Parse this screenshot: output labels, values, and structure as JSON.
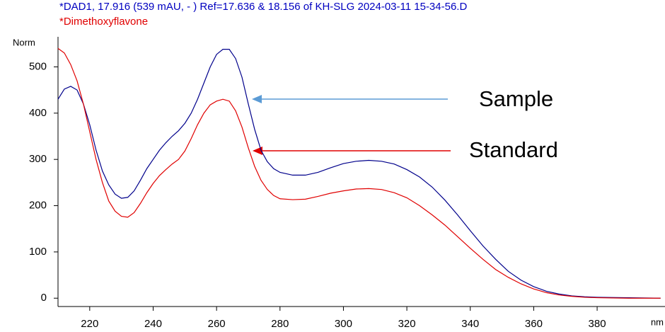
{
  "chart_data": {
    "type": "line",
    "title": "*DAD1, 17.916 (539 mAU, - ) Ref=17.636 & 18.156 of KH-SLG 2024-03-11 15-34-56.D",
    "subtitle": "*Dimethoxyflavone",
    "y_label": "Norm",
    "x_label": "nm",
    "x": [
      210,
      212,
      214,
      216,
      218,
      220,
      222,
      224,
      226,
      228,
      230,
      232,
      234,
      236,
      238,
      240,
      242,
      244,
      246,
      248,
      250,
      252,
      254,
      256,
      258,
      260,
      262,
      264,
      266,
      268,
      270,
      272,
      274,
      276,
      278,
      280,
      284,
      288,
      292,
      296,
      300,
      304,
      308,
      312,
      316,
      320,
      324,
      328,
      332,
      336,
      340,
      344,
      348,
      352,
      356,
      360,
      364,
      368,
      372,
      376,
      380,
      390,
      400
    ],
    "series": [
      {
        "name": "Sample",
        "color": "#00008b",
        "values": [
          430,
          452,
          458,
          450,
          420,
          375,
          320,
          275,
          245,
          225,
          216,
          218,
          232,
          255,
          280,
          300,
          320,
          336,
          350,
          362,
          378,
          400,
          430,
          465,
          500,
          527,
          538,
          538,
          518,
          478,
          420,
          365,
          320,
          295,
          280,
          272,
          266,
          266,
          272,
          282,
          291,
          296,
          298,
          296,
          290,
          278,
          262,
          240,
          212,
          180,
          146,
          113,
          84,
          58,
          39,
          25,
          15,
          9,
          5,
          3,
          2,
          1,
          0
        ]
      },
      {
        "name": "Standard",
        "color": "#e00000",
        "values": [
          540,
          530,
          505,
          470,
          420,
          360,
          300,
          250,
          210,
          188,
          177,
          175,
          185,
          205,
          228,
          248,
          265,
          278,
          290,
          300,
          318,
          345,
          375,
          400,
          418,
          426,
          430,
          426,
          405,
          370,
          325,
          285,
          255,
          235,
          222,
          215,
          213,
          214,
          220,
          227,
          232,
          236,
          237,
          235,
          228,
          217,
          200,
          180,
          158,
          133,
          108,
          84,
          62,
          45,
          31,
          20,
          12,
          7,
          4,
          2,
          1,
          0,
          0
        ]
      }
    ],
    "xlim": [
      210,
      401.4
    ],
    "xticks": [
      220,
      240,
      260,
      280,
      300,
      320,
      340,
      360,
      380
    ],
    "ylim": [
      -18,
      565
    ],
    "yticks": [
      0,
      100,
      200,
      300,
      400,
      500
    ]
  }
}
